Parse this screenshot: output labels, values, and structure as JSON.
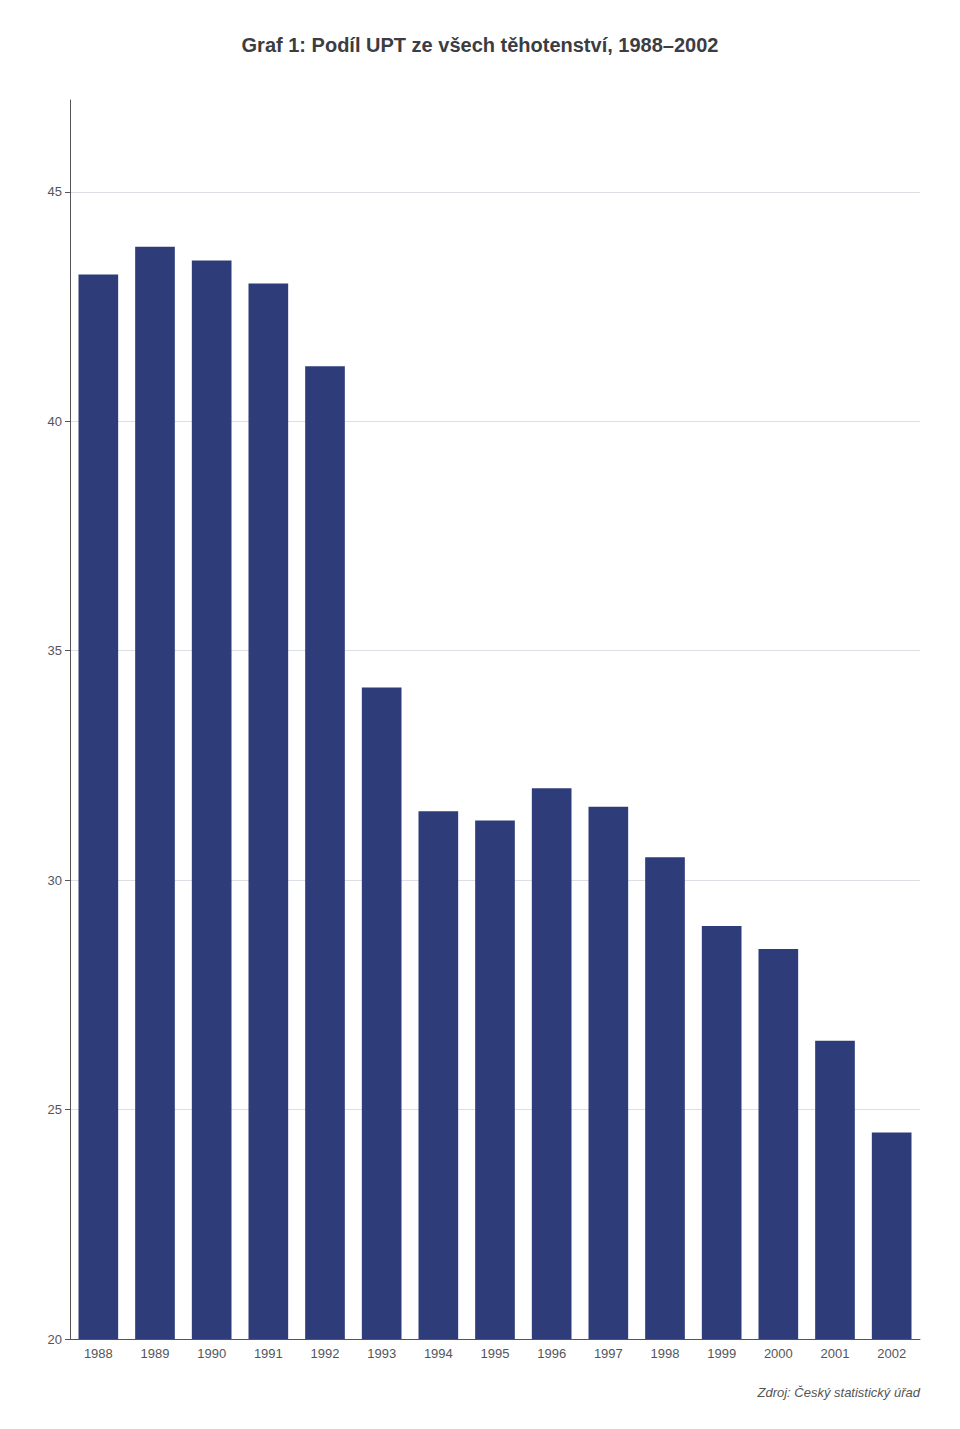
{
  "chart_data": {
    "type": "bar",
    "title": "Graf 1: Podíl UPT ze všech těhotenství, 1988–2002",
    "categories": [
      "1988",
      "1989",
      "1990",
      "1991",
      "1992",
      "1993",
      "1994",
      "1995",
      "1996",
      "1997",
      "1998",
      "1999",
      "2000",
      "2001",
      "2002"
    ],
    "values": [
      43.2,
      43.8,
      43.5,
      43.0,
      41.2,
      34.2,
      31.5,
      31.3,
      32.0,
      31.6,
      30.5,
      29.0,
      28.5,
      26.5,
      24.5
    ],
    "color": "#2e3d7a",
    "ylim": [
      20,
      47
    ],
    "yticks": [
      20,
      25,
      30,
      35,
      40,
      45
    ],
    "grid": true,
    "annotations": [
      "Zdroj: Český statistický úřad"
    ]
  }
}
